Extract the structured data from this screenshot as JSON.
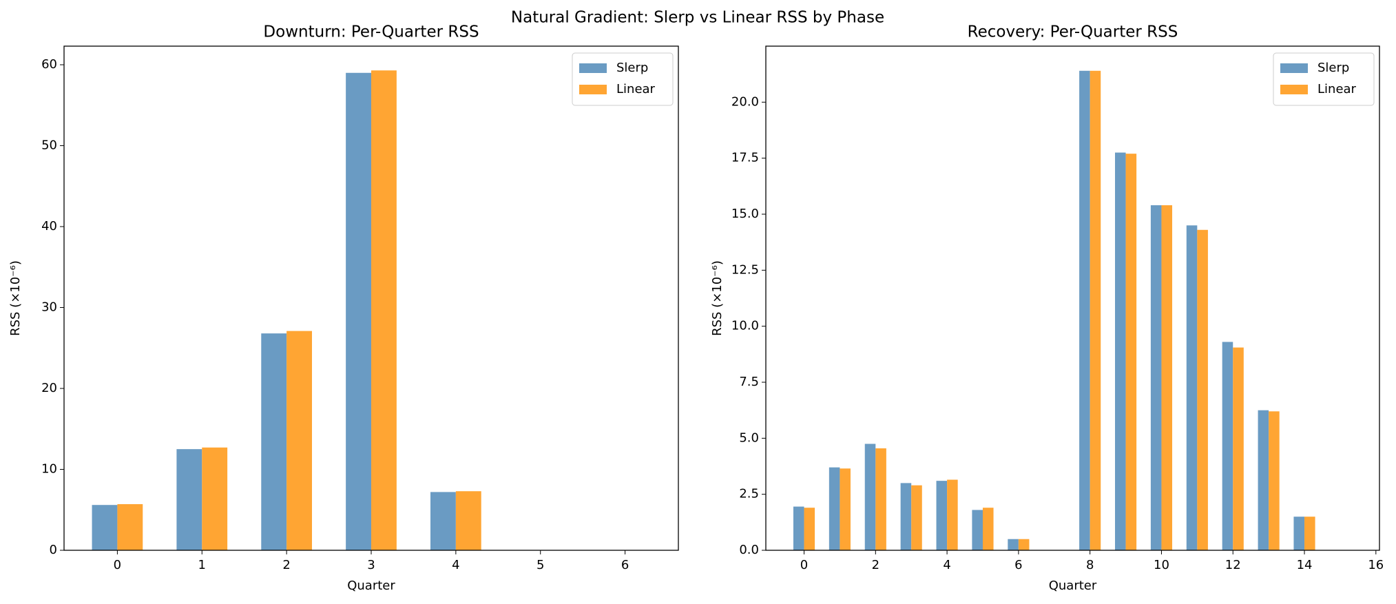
{
  "title": "Natural Gradient: Slerp vs Linear RSS by Phase",
  "chart_data": [
    {
      "type": "bar",
      "title": "Downturn: Per-Quarter RSS",
      "xlabel": "Quarter",
      "ylabel": "RSS (×10⁻⁶)",
      "x": [
        0,
        1,
        2,
        3,
        4
      ],
      "series": [
        {
          "name": "Slerp",
          "color": "#6a9bc3",
          "values": [
            5.6,
            12.5,
            26.8,
            59.0,
            7.2
          ]
        },
        {
          "name": "Linear",
          "color": "#ffa533",
          "values": [
            5.7,
            12.7,
            27.1,
            59.3,
            7.3
          ]
        }
      ],
      "xlim": [
        -0.63,
        6.63
      ],
      "xticks": [
        0,
        1,
        2,
        3,
        4,
        5,
        6
      ],
      "ylim": [
        0,
        62.3
      ],
      "yticks": [
        0,
        10,
        20,
        30,
        40,
        50,
        60
      ],
      "legend": "upper right"
    },
    {
      "type": "bar",
      "title": "Recovery: Per-Quarter RSS",
      "xlabel": "Quarter",
      "ylabel": "RSS (×10⁻⁶)",
      "x": [
        0,
        1,
        2,
        3,
        4,
        5,
        6,
        8,
        9,
        10,
        11,
        12,
        13,
        14
      ],
      "series": [
        {
          "name": "Slerp",
          "color": "#6a9bc3",
          "values": [
            1.95,
            3.7,
            4.75,
            3.0,
            3.1,
            1.8,
            0.5,
            21.4,
            17.75,
            15.4,
            14.5,
            9.3,
            6.25,
            1.5
          ]
        },
        {
          "name": "Linear",
          "color": "#ffa533",
          "values": [
            1.9,
            3.65,
            4.55,
            2.9,
            3.15,
            1.9,
            0.5,
            21.4,
            17.7,
            15.4,
            14.3,
            9.05,
            6.2,
            1.5
          ]
        }
      ],
      "xlim": [
        -1.07,
        16.1
      ],
      "xticks": [
        0,
        2,
        4,
        6,
        8,
        10,
        12,
        14,
        16
      ],
      "ylim": [
        0,
        22.5
      ],
      "yticks": [
        {
          "value": 0,
          "label": "0.0"
        },
        {
          "value": 2.5,
          "label": "2.5"
        },
        {
          "value": 5,
          "label": "5.0"
        },
        {
          "value": 7.5,
          "label": "7.5"
        },
        {
          "value": 10,
          "label": "10.0"
        },
        {
          "value": 12.5,
          "label": "12.5"
        },
        {
          "value": 15,
          "label": "15.0"
        },
        {
          "value": 17.5,
          "label": "17.5"
        },
        {
          "value": 20,
          "label": "20.0"
        }
      ],
      "legend": "upper right"
    }
  ]
}
